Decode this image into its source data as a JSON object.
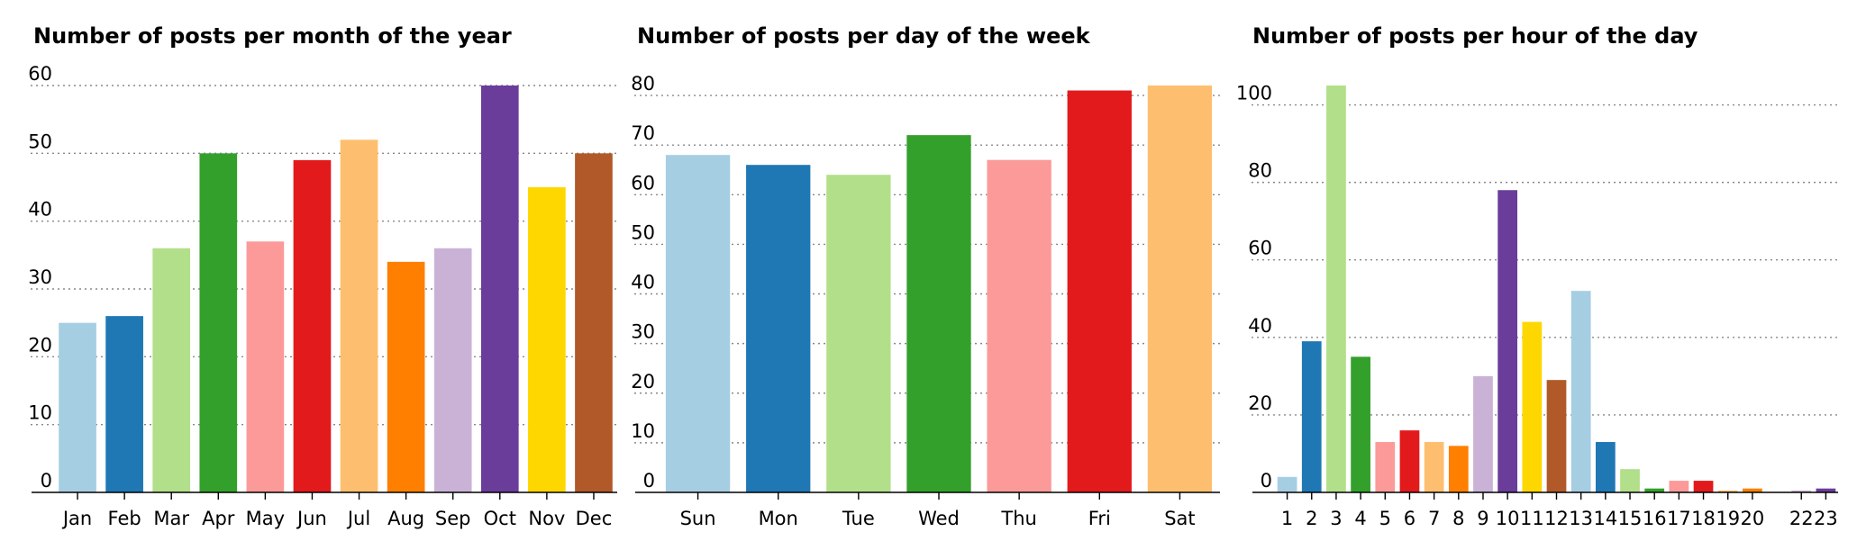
{
  "palette": [
    "#a6cee3",
    "#1f78b4",
    "#b2df8a",
    "#33a02c",
    "#fb9a99",
    "#e31a1c",
    "#fdbf6f",
    "#ff7f00",
    "#cab2d6",
    "#6a3d9a",
    "#ffd700",
    "#b15928"
  ],
  "chart_data": [
    {
      "type": "bar",
      "title": "Number of posts per month of the year",
      "categories": [
        "Jan",
        "Feb",
        "Mar",
        "Apr",
        "May",
        "Jun",
        "Jul",
        "Aug",
        "Sep",
        "Oct",
        "Nov",
        "Dec"
      ],
      "values": [
        25,
        26,
        36,
        50,
        37,
        49,
        52,
        34,
        36,
        60,
        45,
        50
      ],
      "ylim": [
        0,
        60
      ],
      "yticks": [
        0,
        10,
        20,
        30,
        40,
        50,
        60
      ],
      "grid": "horizontal-dotted"
    },
    {
      "type": "bar",
      "title": "Number of posts per day of the week",
      "categories": [
        "Sun",
        "Mon",
        "Tue",
        "Wed",
        "Thu",
        "Fri",
        "Sat"
      ],
      "values": [
        68,
        66,
        64,
        72,
        67,
        81,
        82
      ],
      "ylim": [
        0,
        82
      ],
      "yticks": [
        0,
        10,
        20,
        30,
        40,
        50,
        60,
        70,
        80
      ],
      "grid": "horizontal-dotted"
    },
    {
      "type": "bar",
      "title": "Number of posts per hour of the day",
      "categories": [
        "1",
        "2",
        "3",
        "4",
        "5",
        "6",
        "7",
        "8",
        "9",
        "10",
        "11",
        "12",
        "13",
        "14",
        "15",
        "16",
        "17",
        "18",
        "19",
        "20",
        "22",
        "23"
      ],
      "x": [
        1,
        2,
        3,
        4,
        5,
        6,
        7,
        8,
        9,
        10,
        11,
        12,
        13,
        14,
        15,
        16,
        17,
        18,
        19,
        20,
        22,
        23
      ],
      "values": [
        4,
        39,
        105,
        35,
        13,
        16,
        13,
        12,
        30,
        78,
        44,
        29,
        52,
        13,
        6,
        1,
        3,
        3,
        0.5,
        1,
        0.5,
        1
      ],
      "ylim": [
        0,
        105
      ],
      "yticks": [
        0,
        20,
        40,
        60,
        80,
        100
      ],
      "grid": "horizontal-dotted"
    }
  ]
}
